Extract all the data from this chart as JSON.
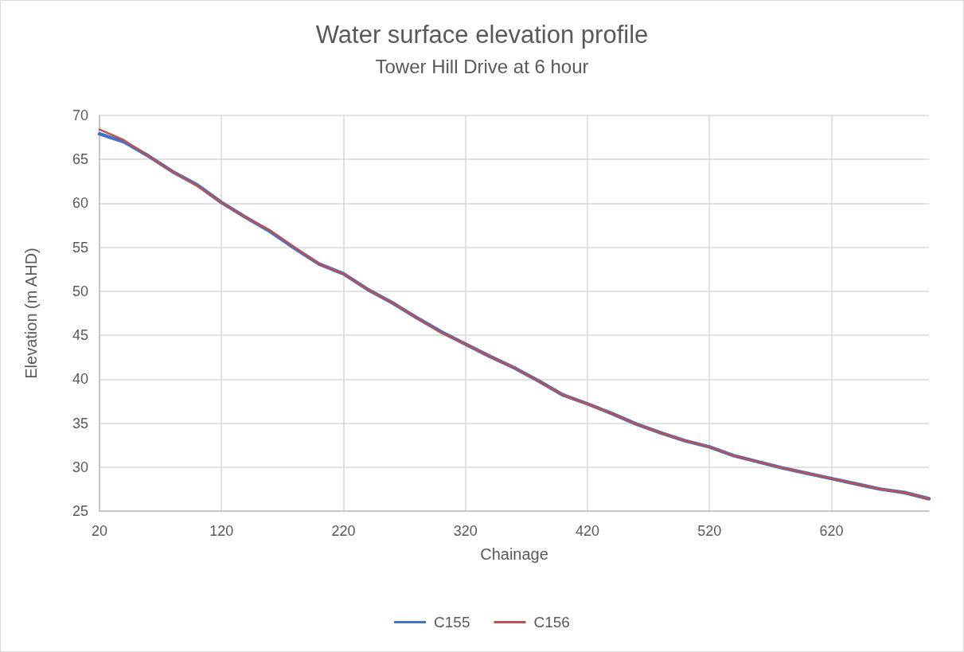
{
  "chart_data": {
    "type": "line",
    "title": "Water surface elevation profile",
    "subtitle": "Tower Hill Drive at 6 hour",
    "xlabel": "Chainage",
    "ylabel": "Elevation (m AHD)",
    "xlim": [
      20,
      700
    ],
    "xticks": [
      20,
      120,
      220,
      320,
      420,
      520,
      620
    ],
    "ylim": [
      25,
      70
    ],
    "yticks": [
      25,
      30,
      35,
      40,
      45,
      50,
      55,
      60,
      65,
      70
    ],
    "grid": true,
    "legend": "bottom",
    "marker": "none",
    "line_style": "solid",
    "x": [
      20,
      40,
      60,
      80,
      100,
      120,
      140,
      160,
      180,
      200,
      220,
      240,
      260,
      280,
      300,
      320,
      340,
      360,
      380,
      400,
      420,
      440,
      460,
      480,
      500,
      520,
      540,
      560,
      580,
      600,
      620,
      640,
      660,
      680,
      700
    ],
    "series": [
      {
        "name": "C155",
        "color": "#4472c4",
        "values": [
          67.9,
          67.0,
          65.4,
          63.6,
          62.1,
          60.1,
          58.4,
          56.8,
          54.9,
          53.1,
          52.0,
          50.2,
          48.7,
          47.0,
          45.4,
          44.0,
          42.6,
          41.3,
          39.8,
          38.2,
          37.2,
          36.1,
          34.9,
          33.9,
          33.0,
          32.3,
          31.3,
          30.6,
          29.9,
          29.3,
          28.7,
          28.1,
          27.5,
          27.1,
          26.4
        ]
      },
      {
        "name": "C156",
        "color": "#c0504d",
        "values": [
          68.4,
          67.2,
          65.4,
          63.6,
          62.0,
          60.1,
          58.4,
          56.9,
          55.0,
          53.1,
          52.0,
          50.2,
          48.7,
          47.0,
          45.3,
          44.0,
          42.6,
          41.3,
          39.8,
          38.2,
          37.2,
          36.1,
          34.9,
          33.9,
          33.0,
          32.3,
          31.3,
          30.6,
          29.9,
          29.3,
          28.7,
          28.1,
          27.5,
          27.1,
          26.4
        ]
      }
    ]
  }
}
